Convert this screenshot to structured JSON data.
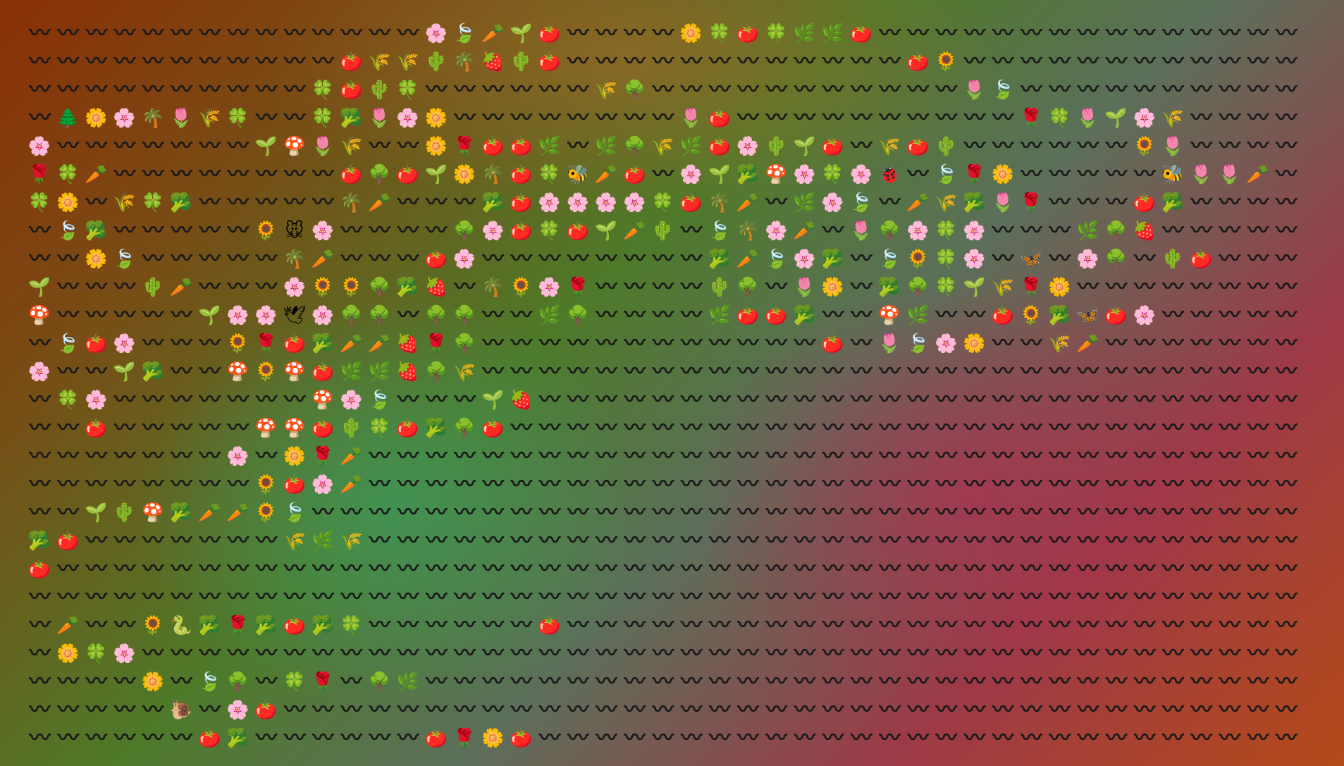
{
  "grid": {
    "rows": [
      "~~~~~~~~~~~~~~ABCDE~~~~FGEGHHE~~~~~~~~~~~~~~~~~~~~~~~~~~~",
      "~~~~~~~~~~~EIIJKLJE~~~~~~~~~~~~EM~~~~~~~~~~~~~~~~~~~~~~~~",
      "~~~~~~~~~~GEJG~~~~~~IN~~~~~~~~~~~OB~~~~~~~~~~~~~~~~~~~~~~",
      "~PFAKOIG~~GQOAF~~~~~~~~OE~~~~~~~~~~RGODAI~~~~~~~~~~~~~~~~",
      "A~~~~~~~DSOI~~FREEH~HNIHEAJDE~IEJ~~~~~~MO~~~~~~~~~~~~~~~~",
      "RGC~~~~~~~~ENEDFKEGTCE~ADQSAGAU~BRF~~~~~TOOC~~~~~~~~~~~~~",
      "GF~IGQ~~~~~KC~~~QEAAAAGEKC~HAB~CIQOR~~~EQ~~~~~~~~~~~~~~~~",
      "~BQ~~~~~MVA~~~~NAEGEDCJ~BKAC~ONAGA~~~HNL~~~~~~~~~~~~~~~~~",
      "~~FB~~~~~KC~~~EA~~~~~~~~QCBAQ~BMGA~W~AN~JE~~~~~~~~~~~~~~~",
      "D~~~JC~~~AMMNQL~KMAR~~~~JN~OF~QNGDIRF~~~~~~~~~~~~~~~~~~~~",
      "S~~~~~DAAXANN~NN~~HN~~~~HEEQ~~SH~~EMQWEA~~~~~~~~~~~~~~~~~",
      "~BEA~~~MREQCCLRN~~~~~~~~~~~~E~OBAF~~IC~~~~~~~~~~~~~~~~~~~",
      "A~~DQ~~SMSEHHLNI~~~~~~~~~~~~~~~~~~~~~~~~~~~~~~~~~~~~~~~~~",
      "~GA~~~~~~~SAB~~~DL~~~~~~~~~~~~~~~~~~~~~~~~~~~~~~~~~~~~~~~",
      "~~E~~~~~SSEJGEQNE~~~~~~~~~~~~~~~~~~~~~~~~~~~~~~~~~~~~~~~~",
      "~~~~~~~A~FRC~~~~~~~~~~~~~~~~~~~~~~~~~~~~~~~~~~~~~~~~~~~~~",
      "~~~~~~~~MEAC~~~~~~~~~~~~~~~~~~~~~~~~~~~~~~~~~~~~~~~~~~~~~",
      "~~DJSQCCMB~~~~~~~~~~~~~~~~~~~~~~~~~~~~~~~~~~~~~~~~~~~~~~~",
      "QE~~~~~~~IHI~~~~~~~~~~~~~~~~~~~~~~~~~~~~~~~~~~~~~~~~~~~~~",
      "E~~~~~~~~~~~~~~~~~~~~~~~~~~~~~~~~~~~~~~~~~~~~~~~~~~~~~~~~",
      "~~~~~~~~~~~~~~~~~~~~~~~~~~~~~~~~~~~~~~~~~~~~~~~~~~~~~~~~~",
      "~C~~MYQRQEQG~~~~~~E~~~~~~~~~~~~~~~~~~~~~~~~~~~~~~~~~~~~~~",
      "~FGA~~~~~~~~~~~~~~~~~~~~~~~~~~~~~~~~~~~~~~~~~~~~~~~~~~~~~",
      "~~~~F~BN~GR~NH~~~~~~~~~~~~~~~~~~~~~~~~~~~~~~~~~~~~~~~~~~~",
      "~~~~~Z~AE~~~~~~~~~~~~~~~~~~~~~~~~~~~~~~~~~~~~~~~~~~~~~~~~",
      "~~~~~~EQ~~~~~~ERFE~~~~~~~~~~~~~~~~~~~~~~~~~~~~~~~~~~~~~~~"
    ],
    "legend": {
      "~": "〰",
      "A": "🌸",
      "B": "🍃",
      "C": "🥕",
      "D": "🌱",
      "E": "🍅",
      "F": "🌼",
      "G": "🍀",
      "H": "🌿",
      "I": "🌾",
      "J": "🌵",
      "K": "🌴",
      "L": "🍓",
      "M": "🌻",
      "N": "🌳",
      "O": "🌷",
      "P": "🌲",
      "Q": "🥦",
      "R": "🌹",
      "S": "🍄",
      "T": "🐝",
      "U": "🐞",
      "V": "🐭",
      "W": "🦋",
      "X": "🕊",
      "Y": "🐍",
      "Z": "🐌"
    },
    "wave_color": "#1a1a1a"
  }
}
